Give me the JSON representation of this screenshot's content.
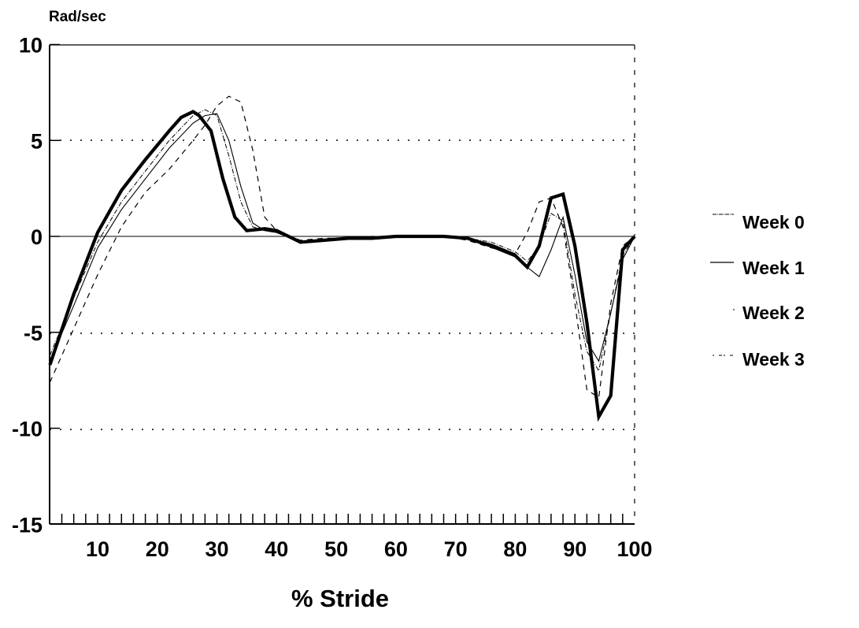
{
  "chart_data": {
    "type": "line",
    "title": "",
    "ylabel": "Rad/sec",
    "xlabel": "% Stride",
    "xlim": [
      2,
      100
    ],
    "ylim": [
      -15,
      10
    ],
    "x_ticks": [
      10,
      20,
      30,
      40,
      50,
      60,
      70,
      80,
      90,
      100
    ],
    "y_ticks": [
      10,
      5,
      0,
      -5,
      -10,
      -15
    ],
    "grid": "dotted horizontal at y = 5, -5, -10; solid line at y = 0",
    "legend_position": "right",
    "series": [
      {
        "name": "Week 0",
        "style": "thin dash-dot",
        "x": [
          2,
          6,
          10,
          14,
          18,
          22,
          26,
          28,
          30,
          32,
          34,
          36,
          38,
          40,
          44,
          48,
          52,
          56,
          60,
          64,
          68,
          72,
          76,
          80,
          82,
          84,
          86,
          88,
          90,
          92,
          94,
          96,
          98,
          100
        ],
        "y": [
          -6.2,
          -3.2,
          -0.3,
          1.8,
          3.4,
          5.0,
          6.3,
          6.6,
          6.3,
          4.2,
          1.8,
          0.5,
          0.3,
          0.2,
          -0.3,
          -0.2,
          -0.1,
          -0.1,
          0.0,
          0.0,
          0.0,
          -0.1,
          -0.3,
          -0.8,
          -1.3,
          -0.5,
          1.2,
          0.8,
          -3.0,
          -6.0,
          -7.0,
          -4.0,
          -1.0,
          0.0
        ]
      },
      {
        "name": "Week 1",
        "style": "thin solid",
        "x": [
          2,
          6,
          10,
          14,
          18,
          22,
          26,
          28,
          30,
          32,
          34,
          36,
          38,
          40,
          44,
          48,
          52,
          56,
          60,
          64,
          68,
          72,
          76,
          80,
          82,
          84,
          86,
          88,
          90,
          92,
          94,
          96,
          98,
          100
        ],
        "y": [
          -6.5,
          -3.6,
          -0.6,
          1.4,
          3.0,
          4.6,
          5.9,
          6.3,
          6.4,
          5.0,
          2.6,
          0.7,
          0.3,
          0.2,
          -0.3,
          -0.2,
          -0.1,
          -0.1,
          0.0,
          0.0,
          0.0,
          -0.1,
          -0.4,
          -0.9,
          -1.6,
          -2.1,
          -0.7,
          1.0,
          -2.0,
          -5.5,
          -6.5,
          -4.0,
          -1.2,
          0.0
        ]
      },
      {
        "name": "Week 2",
        "style": "thick solid",
        "x": [
          2,
          6,
          10,
          12,
          14,
          18,
          22,
          24,
          26,
          27,
          29,
          31,
          33,
          35,
          38,
          40,
          42,
          44,
          48,
          52,
          56,
          60,
          64,
          68,
          72,
          76,
          80,
          82,
          84,
          86,
          88,
          90,
          92,
          94,
          96,
          98,
          100
        ],
        "y": [
          -6.7,
          -3.0,
          0.2,
          1.3,
          2.4,
          4.0,
          5.5,
          6.2,
          6.5,
          6.3,
          5.5,
          3.0,
          1.0,
          0.3,
          0.4,
          0.3,
          0.0,
          -0.3,
          -0.2,
          -0.1,
          -0.1,
          0.0,
          0.0,
          0.0,
          -0.1,
          -0.5,
          -1.0,
          -1.6,
          -0.5,
          2.0,
          2.2,
          -0.5,
          -4.5,
          -9.4,
          -8.3,
          -0.7,
          0.0
        ]
      },
      {
        "name": "Week 3",
        "style": "dashed",
        "x": [
          2,
          6,
          10,
          14,
          18,
          22,
          26,
          28,
          30,
          32,
          34,
          36,
          38,
          40,
          44,
          48,
          52,
          56,
          60,
          64,
          68,
          72,
          76,
          80,
          82,
          84,
          86,
          88,
          90,
          92,
          94,
          96,
          98,
          100
        ],
        "y": [
          -7.6,
          -4.8,
          -2.0,
          0.5,
          2.3,
          3.5,
          5.0,
          5.8,
          6.8,
          7.3,
          7.0,
          4.5,
          1.0,
          0.3,
          -0.2,
          -0.1,
          -0.1,
          0.0,
          0.0,
          0.0,
          0.0,
          -0.2,
          -0.6,
          -0.9,
          0.2,
          1.8,
          2.0,
          0.5,
          -3.5,
          -8.0,
          -8.4,
          -3.5,
          -0.5,
          0.0
        ]
      }
    ]
  },
  "axes": {
    "y_title": "Rad/sec",
    "x_title": "% Stride",
    "y_tick_labels": [
      "10",
      "5",
      "0",
      "-5",
      "-10",
      "-15"
    ],
    "x_tick_labels": [
      "10",
      "20",
      "30",
      "40",
      "50",
      "60",
      "70",
      "80",
      "90",
      "100"
    ]
  },
  "legend": {
    "items": [
      {
        "label": "Week 0"
      },
      {
        "label": "Week 1"
      },
      {
        "label": "Week 2"
      },
      {
        "label": "Week 3"
      }
    ]
  }
}
